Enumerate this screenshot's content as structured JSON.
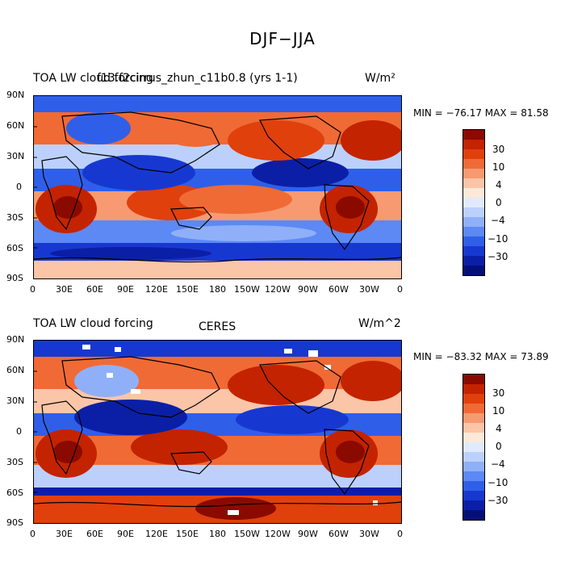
{
  "title": "DJF−JJA",
  "panels": [
    {
      "left_label": "TOA LW cloud forcing",
      "center_label": "f13.f2cirrus_zhun_c11b0.8 (yrs 1-1)",
      "units": "W/m²",
      "min_max": "MIN = −76.17 MAX =  81.58",
      "min": -76.17,
      "max": 81.58
    },
    {
      "left_label": "TOA LW cloud forcing",
      "center_label": "CERES",
      "units": "W/m^2",
      "min_max": "MIN = −83.32 MAX =  73.89",
      "min": -83.32,
      "max": 73.89
    }
  ],
  "lat_ticks": [
    "90N",
    "60N",
    "30N",
    "0",
    "30S",
    "60S",
    "90S"
  ],
  "lon_ticks": [
    "0",
    "30E",
    "60E",
    "90E",
    "120E",
    "150E",
    "180",
    "150W",
    "120W",
    "90W",
    "60W",
    "30W",
    "0"
  ],
  "colorbar": {
    "labels": [
      "30",
      "10",
      "4",
      "0",
      "−4",
      "−10",
      "−30"
    ],
    "colors": [
      "#8b0a00",
      "#c42300",
      "#e0400c",
      "#f06a35",
      "#f79a72",
      "#fbc5a8",
      "#fde9d9",
      "#e1eafd",
      "#bcd0fb",
      "#8fb0f8",
      "#5c89f3",
      "#2f5fe8",
      "#1738d0",
      "#0b1fa6",
      "#050f78"
    ]
  }
}
